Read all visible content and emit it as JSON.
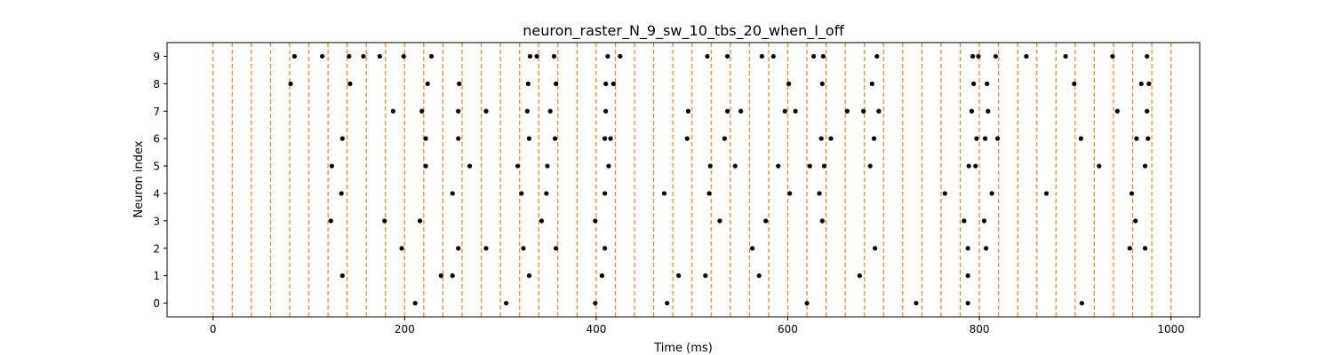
{
  "chart_data": {
    "type": "scatter",
    "title": "neuron_raster_N_9_sw_10_tbs_20_when_I_off",
    "xlabel": "Time (ms)",
    "ylabel": "Neuron index",
    "xlim": [
      -48,
      1030
    ],
    "ylim": [
      -0.5,
      9.5
    ],
    "x_ticks": [
      0,
      200,
      400,
      600,
      800,
      1000
    ],
    "x_tick_labels": [
      "0",
      "200",
      "400",
      "600",
      "800",
      "1000"
    ],
    "y_ticks": [
      0,
      1,
      2,
      3,
      4,
      5,
      6,
      7,
      8,
      9
    ],
    "y_tick_labels": [
      "0",
      "1",
      "2",
      "3",
      "4",
      "5",
      "6",
      "7",
      "8",
      "9"
    ],
    "grid": false,
    "vlines": {
      "style": "dashed",
      "color": "#ff7f0e",
      "x": [
        0,
        20,
        40,
        60,
        80,
        100,
        120,
        140,
        160,
        180,
        200,
        220,
        240,
        260,
        280,
        300,
        320,
        340,
        360,
        380,
        400,
        420,
        440,
        460,
        480,
        500,
        520,
        540,
        560,
        580,
        600,
        620,
        640,
        660,
        680,
        700,
        720,
        740,
        760,
        780,
        800,
        820,
        840,
        860,
        880,
        900,
        920,
        940,
        960,
        980,
        1000
      ]
    },
    "series": [
      {
        "marker_color": "#000000",
        "spikes": [
          {
            "neuron": 9,
            "times": [
              85,
              114,
              142,
              157,
              174,
              199,
              228,
              331,
              338,
              356,
              412,
              425,
              516,
              537,
              573,
              585,
              627,
              637,
              693,
              793,
              799,
              817,
              849,
              890,
              939,
              975
            ]
          },
          {
            "neuron": 8,
            "times": [
              81,
              143,
              224,
              257,
              329,
              358,
              410,
              418,
              601,
              636,
              688,
              794,
              808,
              899,
              969,
              977
            ]
          },
          {
            "neuron": 7,
            "times": [
              188,
              218,
              256,
              285,
              328,
              352,
              410,
              496,
              537,
              551,
              597,
              608,
              662,
              679,
              695,
              792,
              809,
              944,
              975
            ]
          },
          {
            "neuron": 6,
            "times": [
              135,
              222,
              256,
              330,
              357,
              409,
              415,
              495,
              534,
              635,
              645,
              690,
              797,
              806,
              819,
              906,
              964,
              976
            ]
          },
          {
            "neuron": 5,
            "times": [
              124,
              222,
              268,
              318,
              349,
              413,
              519,
              545,
              590,
              623,
              638,
              686,
              789,
              796,
              925,
              973
            ]
          },
          {
            "neuron": 4,
            "times": [
              134,
              250,
              322,
              348,
              409,
              471,
              518,
              602,
              633,
              764,
              813,
              870,
              959
            ]
          },
          {
            "neuron": 3,
            "times": [
              123,
              179,
              216,
              343,
              399,
              529,
              577,
              636,
              784,
              805,
              963
            ]
          },
          {
            "neuron": 2,
            "times": [
              197,
              256,
              285,
              324,
              358,
              409,
              563,
              691,
              788,
              807,
              957,
              973
            ]
          },
          {
            "neuron": 1,
            "times": [
              135,
              238,
              250,
              330,
              406,
              486,
              514,
              570,
              675,
              788
            ]
          },
          {
            "neuron": 0,
            "times": [
              211,
              306,
              399,
              474,
              620,
              734,
              788,
              907
            ]
          }
        ]
      }
    ]
  }
}
